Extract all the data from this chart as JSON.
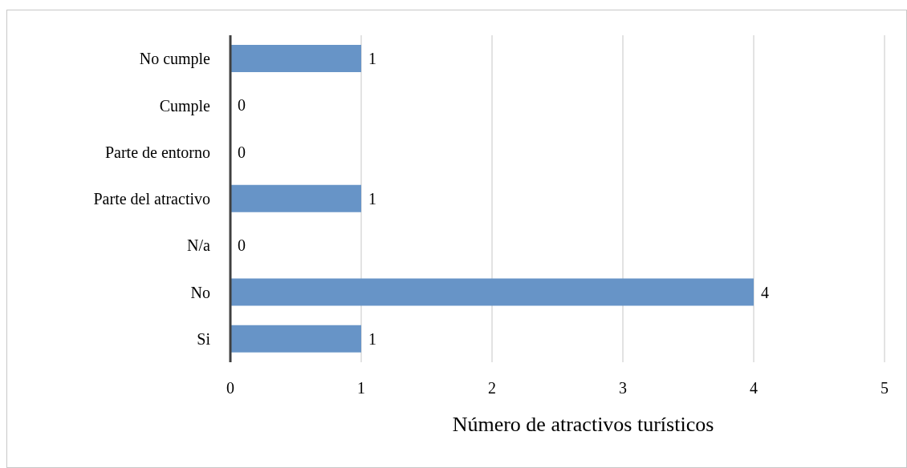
{
  "chart_data": {
    "type": "bar",
    "orientation": "horizontal",
    "categories": [
      "No cumple",
      "Cumple",
      "Parte de entorno",
      "Parte del atractivo",
      "N/a",
      "No",
      "Si"
    ],
    "values": [
      1,
      0,
      0,
      1,
      0,
      4,
      1
    ],
    "color": "#6794c7",
    "xlabel": "Número de atractivos turísticos",
    "xlim": [
      0,
      5
    ],
    "xticks": [
      0,
      1,
      2,
      3,
      4,
      5
    ],
    "grid": "x",
    "data_labels": true
  }
}
